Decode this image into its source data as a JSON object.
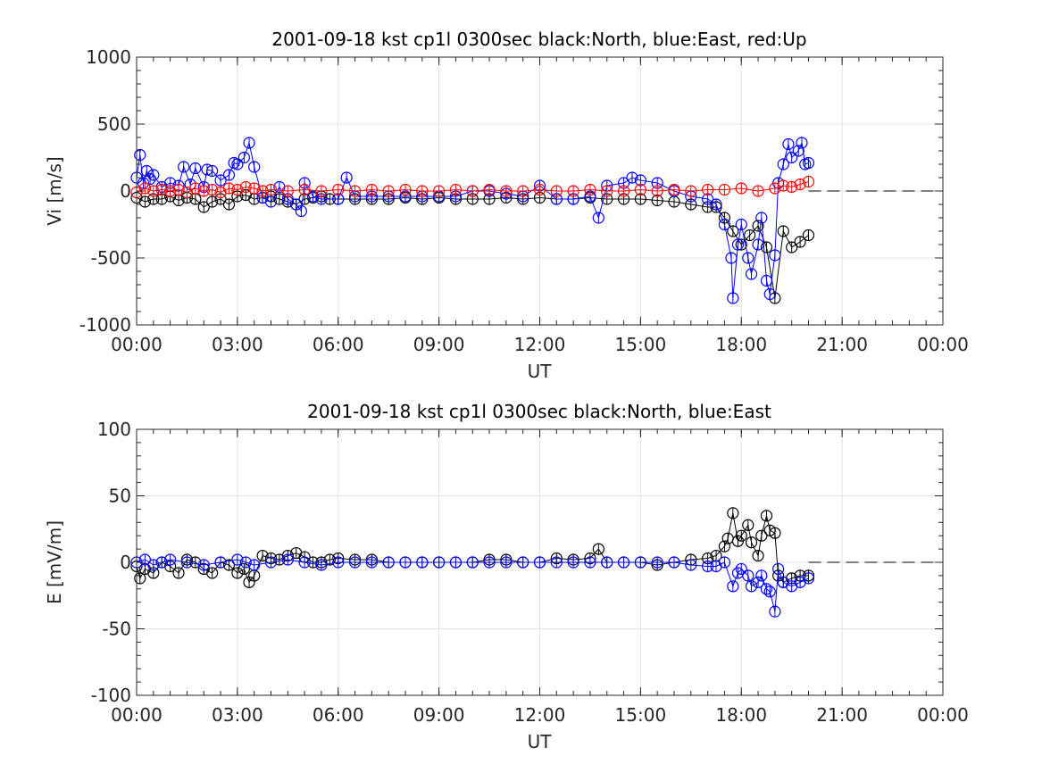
{
  "chart_data": [
    {
      "type": "scatter",
      "title": "2001-09-18 kst cp1l 0300sec black:North, blue:East, red:Up",
      "xlabel": "UT",
      "ylabel": "Vi [m/s]",
      "xlim": [
        0,
        24
      ],
      "ylim": [
        -1000,
        1000
      ],
      "xticks": [
        0,
        3,
        6,
        9,
        12,
        15,
        18,
        21,
        24
      ],
      "xticklabels": [
        "00:00",
        "03:00",
        "06:00",
        "09:00",
        "12:00",
        "15:00",
        "18:00",
        "21:00",
        "00:00"
      ],
      "yticks": [
        -1000,
        -500,
        0,
        500,
        1000
      ],
      "yticklabels": [
        "-1000",
        "-500",
        "0",
        "500",
        "1000"
      ],
      "grid": true,
      "reference_line": {
        "y": 0,
        "x": [
          20,
          24
        ],
        "style": "dashed",
        "color": "#000000"
      },
      "series": [
        {
          "color": "#000000",
          "marker": "circle",
          "x": [
            0.0,
            0.25,
            0.5,
            0.75,
            1.0,
            1.25,
            1.5,
            1.75,
            2.0,
            2.25,
            2.5,
            2.75,
            3.0,
            3.25,
            3.5,
            3.75,
            4.0,
            4.25,
            4.5,
            4.75,
            5.0,
            5.25,
            5.5,
            5.75,
            6.0,
            6.5,
            7.0,
            7.5,
            8.0,
            8.5,
            9.0,
            9.5,
            10.0,
            10.5,
            11.0,
            11.5,
            12.0,
            12.5,
            13.0,
            13.5,
            14.0,
            14.5,
            15.0,
            15.5,
            16.0,
            16.5,
            17.0,
            17.25,
            17.5,
            17.75,
            18.0,
            18.25,
            18.5,
            18.75,
            19.0,
            19.25,
            19.5,
            19.75,
            20.0
          ],
          "y": [
            -50,
            -80,
            -60,
            -60,
            -40,
            -70,
            -50,
            -60,
            -120,
            -80,
            -60,
            -100,
            -40,
            -30,
            -60,
            -50,
            -40,
            -60,
            -80,
            -100,
            -60,
            -50,
            -40,
            -60,
            -60,
            -60,
            -60,
            -60,
            -50,
            -60,
            -50,
            -60,
            -60,
            -60,
            -50,
            -60,
            -50,
            -60,
            -60,
            -50,
            -60,
            -60,
            -60,
            -70,
            -80,
            -100,
            -120,
            -120,
            -200,
            -300,
            -400,
            -330,
            -260,
            -420,
            -800,
            -300,
            -420,
            -380,
            -330
          ]
        },
        {
          "color": "#0000ff",
          "marker": "circle",
          "x": [
            0.0,
            0.1,
            0.2,
            0.3,
            0.4,
            0.5,
            0.75,
            1.0,
            1.25,
            1.4,
            1.6,
            1.75,
            2.0,
            2.1,
            2.25,
            2.5,
            2.75,
            2.9,
            3.0,
            3.2,
            3.35,
            3.5,
            3.75,
            4.0,
            4.25,
            4.5,
            4.75,
            4.9,
            5.0,
            5.25,
            5.5,
            6.0,
            6.25,
            6.5,
            7.0,
            7.5,
            8.0,
            8.5,
            9.0,
            9.5,
            10.0,
            10.5,
            11.0,
            11.5,
            12.0,
            12.5,
            13.0,
            13.5,
            13.75,
            14.0,
            14.5,
            14.75,
            15.0,
            15.5,
            16.0,
            16.5,
            17.0,
            17.25,
            17.5,
            17.7,
            17.75,
            17.9,
            18.0,
            18.2,
            18.3,
            18.5,
            18.6,
            18.75,
            18.85,
            19.0,
            19.1,
            19.25,
            19.4,
            19.5,
            19.7,
            19.8,
            19.9,
            20.0
          ],
          "y": [
            100,
            270,
            60,
            150,
            90,
            120,
            30,
            60,
            40,
            180,
            50,
            170,
            30,
            160,
            150,
            80,
            120,
            210,
            200,
            250,
            360,
            180,
            -50,
            -80,
            30,
            -60,
            -100,
            -150,
            60,
            -40,
            -60,
            -60,
            100,
            -40,
            -40,
            -40,
            -40,
            -40,
            -40,
            -40,
            0,
            0,
            -20,
            -40,
            40,
            -60,
            -60,
            -40,
            -200,
            40,
            60,
            100,
            80,
            60,
            0,
            -40,
            -60,
            -100,
            -250,
            -500,
            -800,
            -400,
            -250,
            -500,
            -620,
            -400,
            -200,
            -670,
            -770,
            -480,
            60,
            200,
            350,
            250,
            300,
            360,
            200,
            210
          ]
        },
        {
          "color": "#ff0000",
          "marker": "circle",
          "x": [
            0.0,
            0.25,
            0.5,
            0.75,
            1.0,
            1.25,
            1.5,
            1.75,
            2.0,
            2.25,
            2.5,
            2.75,
            3.0,
            3.25,
            3.5,
            3.75,
            4.0,
            4.5,
            5.0,
            5.5,
            6.0,
            6.5,
            7.0,
            7.5,
            8.0,
            8.5,
            9.0,
            9.5,
            10.0,
            10.5,
            11.0,
            11.5,
            12.0,
            12.5,
            13.0,
            13.5,
            14.0,
            14.5,
            15.0,
            15.5,
            16.0,
            16.5,
            17.0,
            17.5,
            18.0,
            18.5,
            19.0,
            19.25,
            19.5,
            19.75,
            20.0
          ],
          "y": [
            -10,
            20,
            0,
            10,
            0,
            10,
            -10,
            20,
            0,
            10,
            -10,
            20,
            10,
            30,
            20,
            0,
            10,
            0,
            10,
            0,
            10,
            0,
            10,
            0,
            10,
            0,
            0,
            10,
            0,
            10,
            0,
            0,
            10,
            0,
            0,
            10,
            0,
            0,
            10,
            0,
            10,
            0,
            10,
            10,
            20,
            0,
            20,
            40,
            30,
            50,
            70
          ]
        }
      ]
    },
    {
      "type": "scatter",
      "title": "2001-09-18 kst cp1l 0300sec black:North, blue:East",
      "xlabel": "UT",
      "ylabel": "E [mV/m]",
      "xlim": [
        0,
        24
      ],
      "ylim": [
        -100,
        100
      ],
      "xticks": [
        0,
        3,
        6,
        9,
        12,
        15,
        18,
        21,
        24
      ],
      "xticklabels": [
        "00:00",
        "03:00",
        "06:00",
        "09:00",
        "12:00",
        "15:00",
        "18:00",
        "21:00",
        "00:00"
      ],
      "yticks": [
        -100,
        -50,
        0,
        50,
        100
      ],
      "yticklabels": [
        "-100",
        "-50",
        "0",
        "50",
        "100"
      ],
      "grid": true,
      "reference_line": {
        "y": 0,
        "x": [
          20,
          24
        ],
        "style": "dashed",
        "color": "#000000"
      },
      "series": [
        {
          "color": "#000000",
          "marker": "circle",
          "x": [
            0.0,
            0.1,
            0.25,
            0.5,
            0.75,
            1.0,
            1.25,
            1.5,
            1.75,
            2.0,
            2.25,
            2.5,
            2.75,
            3.0,
            3.2,
            3.35,
            3.5,
            3.75,
            4.0,
            4.25,
            4.5,
            4.75,
            5.0,
            5.25,
            5.5,
            5.75,
            6.0,
            6.5,
            7.0,
            7.5,
            8.0,
            8.5,
            9.0,
            9.5,
            10.0,
            10.5,
            11.0,
            11.5,
            12.0,
            12.5,
            13.0,
            13.5,
            13.75,
            14.0,
            14.5,
            15.0,
            15.5,
            16.0,
            16.5,
            17.0,
            17.25,
            17.5,
            17.6,
            17.75,
            17.9,
            18.0,
            18.2,
            18.3,
            18.5,
            18.6,
            18.75,
            18.85,
            19.0,
            19.1,
            19.25,
            19.5,
            19.75,
            20.0
          ],
          "y": [
            -3,
            -12,
            -5,
            -8,
            0,
            -3,
            -8,
            2,
            0,
            -5,
            -8,
            0,
            -2,
            -8,
            -5,
            -15,
            -10,
            5,
            3,
            2,
            5,
            7,
            4,
            0,
            0,
            2,
            3,
            2,
            2,
            0,
            0,
            0,
            0,
            0,
            0,
            2,
            2,
            0,
            0,
            3,
            2,
            3,
            10,
            0,
            0,
            0,
            -2,
            0,
            2,
            3,
            5,
            12,
            18,
            37,
            16,
            20,
            28,
            15,
            5,
            20,
            35,
            24,
            22,
            -10,
            -15,
            -12,
            -10,
            -10
          ]
        },
        {
          "color": "#0000ff",
          "marker": "circle",
          "x": [
            0.0,
            0.25,
            0.5,
            0.75,
            1.0,
            1.5,
            2.0,
            2.5,
            3.0,
            3.25,
            3.5,
            4.0,
            4.5,
            5.0,
            5.5,
            6.0,
            6.5,
            7.0,
            7.5,
            8.0,
            8.5,
            9.0,
            9.5,
            10.0,
            10.5,
            11.0,
            11.5,
            12.0,
            12.5,
            13.0,
            13.5,
            14.0,
            14.5,
            15.0,
            15.5,
            16.0,
            16.5,
            17.0,
            17.25,
            17.5,
            17.75,
            17.9,
            18.0,
            18.2,
            18.3,
            18.5,
            18.6,
            18.75,
            18.85,
            19.0,
            19.1,
            19.25,
            19.5,
            19.75,
            20.0
          ],
          "y": [
            0,
            2,
            -2,
            0,
            2,
            0,
            -2,
            0,
            2,
            0,
            -2,
            0,
            2,
            0,
            -2,
            0,
            0,
            0,
            0,
            0,
            0,
            0,
            0,
            0,
            0,
            0,
            0,
            0,
            0,
            0,
            0,
            0,
            0,
            0,
            0,
            0,
            -2,
            -3,
            -3,
            0,
            -18,
            -8,
            -5,
            -10,
            -18,
            -15,
            -10,
            -20,
            -22,
            -37,
            -5,
            -15,
            -18,
            -15,
            -12
          ]
        }
      ]
    }
  ]
}
